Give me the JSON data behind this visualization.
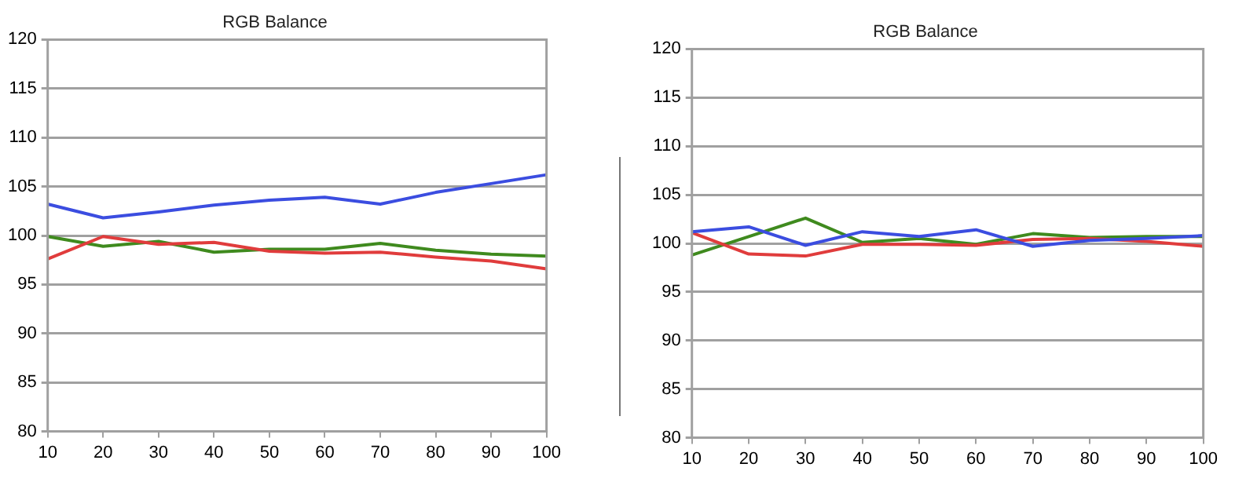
{
  "chart_data": [
    {
      "type": "line",
      "title": "RGB Balance",
      "x": [
        10,
        20,
        30,
        40,
        50,
        60,
        70,
        80,
        90,
        100
      ],
      "xlim": [
        10,
        100
      ],
      "xticks": [
        10,
        20,
        30,
        40,
        50,
        60,
        70,
        80,
        90,
        100
      ],
      "ylim": [
        80,
        120
      ],
      "yticks": [
        80,
        85,
        90,
        95,
        100,
        105,
        110,
        115,
        120
      ],
      "grid": "y",
      "legend": false,
      "series": [
        {
          "color": "#3b4de0",
          "values": [
            103.2,
            101.8,
            102.4,
            103.1,
            103.6,
            103.9,
            103.2,
            104.4,
            105.3,
            106.2
          ]
        },
        {
          "color": "#e03c3c",
          "values": [
            97.6,
            99.9,
            99.1,
            99.3,
            98.4,
            98.2,
            98.3,
            97.8,
            97.4,
            96.6
          ]
        },
        {
          "color": "#3f8a1e",
          "values": [
            99.9,
            98.9,
            99.4,
            98.3,
            98.6,
            98.6,
            99.2,
            98.5,
            98.1,
            97.9
          ]
        }
      ]
    },
    {
      "type": "line",
      "title": "RGB Balance",
      "x": [
        10,
        20,
        30,
        40,
        50,
        60,
        70,
        80,
        90,
        100
      ],
      "xlim": [
        10,
        100
      ],
      "xticks": [
        10,
        20,
        30,
        40,
        50,
        60,
        70,
        80,
        90,
        100
      ],
      "ylim": [
        80,
        120
      ],
      "yticks": [
        80,
        85,
        90,
        95,
        100,
        105,
        110,
        115,
        120
      ],
      "grid": "y",
      "legend": false,
      "series": [
        {
          "color": "#3b4de0",
          "values": [
            101.2,
            101.7,
            99.8,
            101.2,
            100.7,
            101.4,
            99.7,
            100.3,
            100.5,
            100.8
          ]
        },
        {
          "color": "#e03c3c",
          "values": [
            101.1,
            98.9,
            98.7,
            99.9,
            99.9,
            99.8,
            100.4,
            100.5,
            100.2,
            99.7
          ]
        },
        {
          "color": "#3f8a1e",
          "values": [
            98.8,
            100.7,
            102.6,
            100.1,
            100.5,
            99.9,
            101.0,
            100.6,
            100.7,
            100.7
          ]
        }
      ]
    }
  ]
}
